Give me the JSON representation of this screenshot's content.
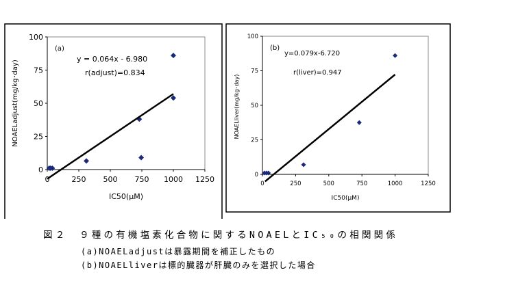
{
  "chart_data": [
    {
      "type": "scatter",
      "panel_label": "(a)",
      "xlabel": "IC50(μM)",
      "ylabel": "NOAELadjust(mg/kg･day)",
      "xlim": [
        0,
        1250
      ],
      "ylim": [
        0,
        100
      ],
      "x_ticks": [
        0,
        250,
        500,
        750,
        1000,
        1250
      ],
      "y_ticks": [
        0,
        25,
        50,
        75,
        100
      ],
      "grid": false,
      "points": [
        {
          "x": 15,
          "y": 1
        },
        {
          "x": 25,
          "y": 1
        },
        {
          "x": 40,
          "y": 1
        },
        {
          "x": 310,
          "y": 6.5
        },
        {
          "x": 730,
          "y": 38
        },
        {
          "x": 745,
          "y": 9
        },
        {
          "x": 1000,
          "y": 54
        },
        {
          "x": 1000,
          "y": 86
        }
      ],
      "trendline": {
        "slope": 0.064,
        "intercept": -6.98,
        "x_range": [
          0,
          1000
        ]
      },
      "equation_text": "y = 0.064x - 6.980",
      "r_text": "r(adjust)=0.834",
      "marker_color": "#1a2a78"
    },
    {
      "type": "scatter",
      "panel_label": "(b)",
      "xlabel": "IC50(μM)",
      "ylabel": "NOAELliver(mg/kg･day)",
      "xlim": [
        0,
        1250
      ],
      "ylim": [
        0,
        100
      ],
      "x_ticks": [
        0,
        250,
        500,
        750,
        1000,
        1250
      ],
      "y_ticks": [
        0,
        25,
        50,
        75,
        100
      ],
      "grid": false,
      "points": [
        {
          "x": 15,
          "y": 1
        },
        {
          "x": 30,
          "y": 1
        },
        {
          "x": 45,
          "y": 1
        },
        {
          "x": 310,
          "y": 7
        },
        {
          "x": 730,
          "y": 37.5
        },
        {
          "x": 1000,
          "y": 86
        }
      ],
      "trendline": {
        "slope": 0.079,
        "intercept": -6.72,
        "x_range": [
          20,
          1000
        ]
      },
      "equation_text": "y=0.079x-6.720",
      "r_text": "r(liver)=0.947",
      "marker_color": "#1a2a78"
    }
  ],
  "caption": {
    "main": "図２　９種の有機塩素化合物に関するNOAELとIC₅₀の相関関係",
    "note_a": "(a)NOAELadjustは暴露期間を補正したもの",
    "note_b": "(b)NOAELliverは標的臓器が肝臓のみを選択した場合"
  }
}
